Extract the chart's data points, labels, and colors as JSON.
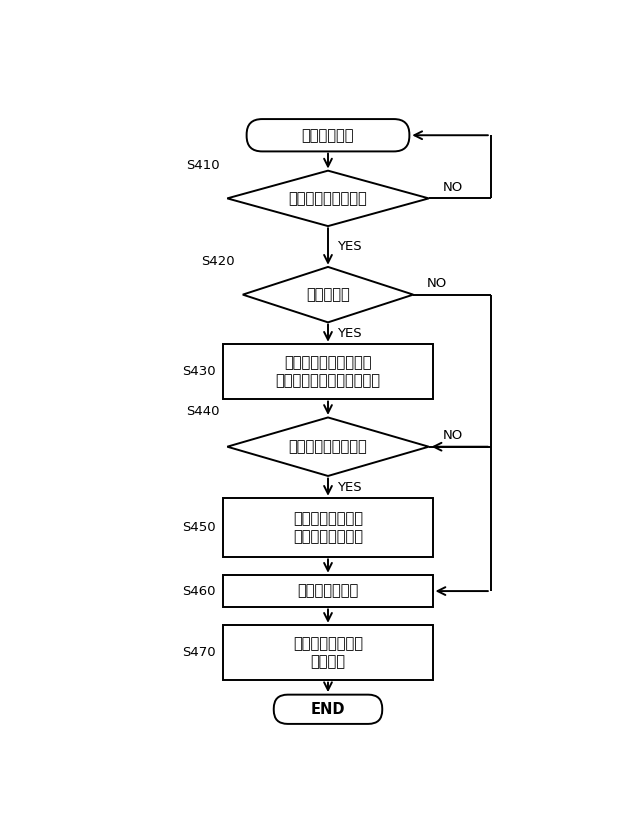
{
  "start_text": "表示設定処理",
  "end_text": "END",
  "diamonds": [
    {
      "label": "表示設定指令あり？",
      "step": "S410"
    },
    {
      "label": "表示変更？",
      "step": "S420"
    },
    {
      "label": "手入力による変更？",
      "step": "S440"
    }
  ],
  "boxes": [
    {
      "label": "表示中画像に対応する\n条件の優先順位を低く変更",
      "step": "S430"
    },
    {
      "label": "指示に従って条件\nや優先順位を変更",
      "step": "S450"
    },
    {
      "label": "変更内容を記録",
      "step": "S460"
    },
    {
      "label": "表示方法設定処理\nを再起動",
      "step": "S470"
    }
  ],
  "yes_label": "YES",
  "no_label": "NO",
  "lw": 1.4,
  "font_size": 10.5,
  "step_font_size": 9.5
}
